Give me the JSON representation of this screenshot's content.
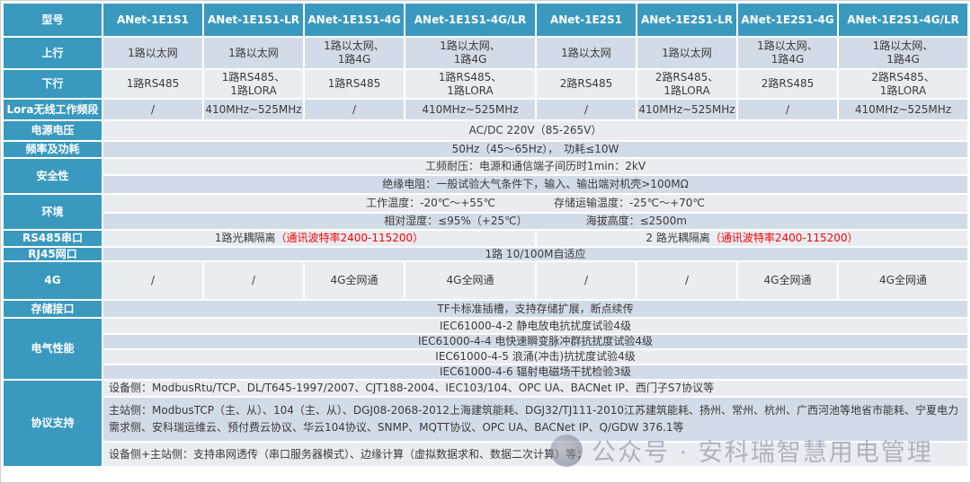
{
  "header": {
    "model_col_label": "型号",
    "models": [
      "ANet-1E1S1",
      "ANet-1E1S1-LR",
      "ANet-1E1S1-4G",
      "ANet-1E1S1-4G/LR",
      "ANet-1E2S1",
      "ANet-1E2S1-LR",
      "ANet-1E2S1-4G",
      "ANet-1E2S1-4G/LR"
    ]
  },
  "rows": {
    "uplink": {
      "label": "上行",
      "cells": [
        "1路以太网",
        "1路以太网",
        "1路以太网、\n1路4G",
        "1路以太网、\n1路4G",
        "1路以太网",
        "1路以太网",
        "1路以太网、\n1路4G",
        "1路以太网、\n1路4G"
      ]
    },
    "downlink": {
      "label": "下行",
      "cells": [
        "1路RS485",
        "1路RS485、\n1路LORA",
        "1路RS485",
        "1路RS485、\n1路LORA",
        "2路RS485",
        "2路RS485、\n1路LORA",
        "2路RS485",
        "2路RS485、\n1路LORA"
      ]
    },
    "lora_band": {
      "label": "Lora无线工作频段",
      "cells": [
        "/",
        "410MHz~525MHz",
        "/",
        "410MHz~525MHz",
        "/",
        "410MHz~525MHz",
        "/",
        "410MHz~525MHz"
      ]
    },
    "power_voltage": {
      "label": "电源电压",
      "value": "AC/DC 220V（85-265V）"
    },
    "freq_power": {
      "label": "频率及功耗",
      "value": "50Hz（45～65Hz），　功耗≤10W"
    },
    "safety": {
      "label": "安全性",
      "line1": "工频耐压：电源和通信端子间历时1min：2kV",
      "line2": "绝缘电阻：一般试验大气条件下，输入、输出端对机壳>100MΩ"
    },
    "environment": {
      "label": "环境",
      "temp_work": "工作温度：-20℃～+55℃",
      "temp_storage": "存储运输温度：-25℃～+70℃",
      "humidity": "相对湿度：≤95%（+25℃）",
      "altitude": "海拔高度：≤2500m"
    },
    "rs485": {
      "label": "RS485串口",
      "left_text": "1路光耦隔离",
      "left_red": "（通讯波特率2400-115200）",
      "right_text": "2 路光耦隔离",
      "right_red": "（通讯波特率2400-115200）"
    },
    "rj45": {
      "label": "RJ45网口",
      "value": "1路 10/100M自适应"
    },
    "cellular": {
      "label": "4G",
      "cells": [
        "/",
        "/",
        "4G全网通",
        "4G全网通",
        "/",
        "/",
        "4G全网通",
        "4G全网通"
      ]
    },
    "storage": {
      "label": "存储接口",
      "value": "TF卡标准插槽，支持存储扩展，断点续传"
    },
    "emc": {
      "label": "电气性能",
      "lines": [
        "IEC61000-4-2 静电放电抗扰度试验4级",
        "IEC61000-4-4 电快速瞬变脉冲群抗扰度试验4级",
        "IEC61000-4-5 浪涌(冲击)抗扰度试验4级",
        "IEC61000-4-6 辐射电磁场干扰检验3级"
      ]
    },
    "protocols": {
      "label": "协议支持",
      "device_side": "设备侧：ModbusRtu/TCP、DL/T645-1997/2007、CJT188-2004、IEC103/104、OPC UA、BACNet IP、西门子S7协议等",
      "master_side": "主站侧：ModbusTCP（主、从）、104（主、从）、DGJ08-2068-2012上海建筑能耗、DGJ32/TJ111-2010江苏建筑能耗、扬州、常州、杭州、广西河池等地省市能耗、宁夏电力需求侧、安科瑞运维云、预付费云协议、华云104协议、SNMP、MQTT协议、OPC UA、BACNet IP、Q/GDW 376.1等",
      "both_side": "设备侧+主站侧：支持串网透传（串口服务器模式）、边缘计算（虚拟数据求和、数据二次计算）等；"
    }
  },
  "watermark": {
    "icon": "wechat-official-account-icon",
    "text": "公众号 · 安科瑞智慧用电管理"
  },
  "colors": {
    "header_teal": "#3A99BF",
    "row_dark": "#D2DCE8",
    "row_light": "#E9EDF2",
    "highlight_red": "#FF0000"
  }
}
